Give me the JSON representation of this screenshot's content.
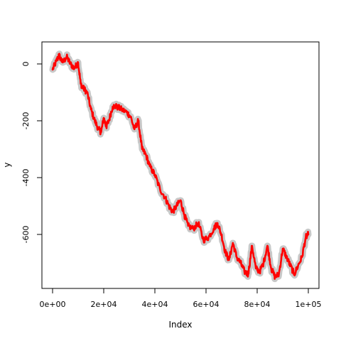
{
  "chart_data": {
    "type": "line",
    "title": "",
    "xlabel": "Index",
    "ylabel": "y",
    "xlim": [
      0,
      100000
    ],
    "ylim": [
      -780,
      40
    ],
    "x_ticks": [
      {
        "value": 0,
        "label": "0e+00"
      },
      {
        "value": 20000,
        "label": "2e+04"
      },
      {
        "value": 40000,
        "label": "4e+04"
      },
      {
        "value": 60000,
        "label": "6e+04"
      },
      {
        "value": 80000,
        "label": "8e+04"
      },
      {
        "value": 100000,
        "label": "1e+05"
      }
    ],
    "y_ticks": [
      {
        "value": 0,
        "label": "0"
      },
      {
        "value": -200,
        "label": "-200"
      },
      {
        "value": -400,
        "label": "-400"
      },
      {
        "value": -600,
        "label": "-600"
      }
    ],
    "grid": false,
    "legend": "none",
    "colors": {
      "line": "#ff0000",
      "band": "#c8c8c8"
    },
    "series": [
      {
        "x": [
          0,
          1500,
          2500,
          4000,
          5500,
          7000,
          8500,
          10000,
          11000,
          12000,
          13500,
          15000,
          16500,
          18000,
          19000,
          20000,
          21000,
          22000,
          23500,
          25000,
          27000,
          29000,
          30500,
          32000,
          33500,
          35000,
          36500,
          38000,
          40000,
          42000,
          44000,
          45500,
          47000,
          48500,
          50000,
          51500,
          53000,
          55000,
          57000,
          59000,
          61000,
          63000,
          64500,
          66000,
          67500,
          69000,
          70500,
          72000,
          73500,
          75000,
          76500,
          78000,
          79500,
          81000,
          82500,
          84000,
          85500,
          87000,
          88500,
          90000,
          91500,
          93000,
          94500,
          96000,
          97500,
          99000,
          100000
        ],
        "y": [
          -20,
          10,
          30,
          5,
          25,
          0,
          -15,
          5,
          -70,
          -85,
          -100,
          -160,
          -200,
          -230,
          -240,
          -190,
          -220,
          -200,
          -150,
          -150,
          -160,
          -170,
          -185,
          -230,
          -200,
          -300,
          -320,
          -360,
          -390,
          -440,
          -470,
          -500,
          -520,
          -500,
          -480,
          -530,
          -570,
          -580,
          -560,
          -620,
          -610,
          -580,
          -560,
          -600,
          -660,
          -690,
          -630,
          -680,
          -700,
          -730,
          -740,
          -640,
          -720,
          -730,
          -700,
          -640,
          -720,
          -750,
          -740,
          -650,
          -680,
          -710,
          -740,
          -710,
          -680,
          -610,
          -600
        ]
      }
    ]
  }
}
